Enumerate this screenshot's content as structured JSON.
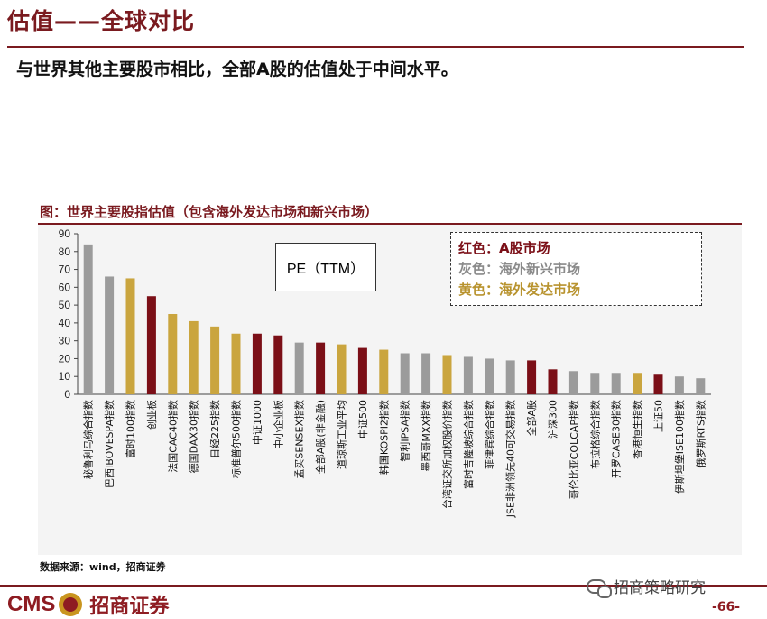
{
  "header": {
    "title": "估值——全球对比",
    "subtitle": "与世界其他主要股市相比，全部A股的估值处于中间水平。"
  },
  "figure": {
    "title": "图：世界主要股指估值（包含海外发达市场和新兴市场）",
    "source": "数据来源：wind，招商证券"
  },
  "chart_data": {
    "type": "bar",
    "title": "PE（TTM）",
    "ylim": [
      0,
      90
    ],
    "yticks": [
      0,
      10,
      20,
      30,
      40,
      50,
      60,
      70,
      80,
      90
    ],
    "categories": [
      "秘鲁利马综合指数",
      "巴西IBOVESPA指数",
      "富时100指数",
      "创业板",
      "法国CAC40指数",
      "德国DAX30指数",
      "日经225指数",
      "标准普尔500指数",
      "中证1000",
      "中小企业板",
      "孟买SENSEX指数",
      "全部A股(非金融)",
      "道琼斯工业平均",
      "中证500",
      "韩国KOSPI2指数",
      "智利IPSA指数",
      "墨西哥MXX指数",
      "台湾证交所加权股价指数",
      "富时吉隆坡综合指数",
      "菲律宾综合指数",
      "JSE非洲领先40可交易指数",
      "全部A股",
      "沪深300",
      "哥伦比亚COLCAP指数",
      "布拉格综合指数",
      "开罗CASE30指数",
      "香港恒生指数",
      "上证50",
      "伊斯坦堡ISE100指数",
      "俄罗斯RTS指数"
    ],
    "values": [
      84,
      66,
      65,
      55,
      45,
      41,
      38,
      34,
      34,
      33,
      29,
      29,
      28,
      26,
      25,
      23,
      23,
      22,
      21,
      20,
      19,
      19,
      14,
      13,
      12,
      12,
      12,
      11,
      10,
      9
    ],
    "groups": [
      "grey",
      "grey",
      "yellow",
      "red",
      "yellow",
      "yellow",
      "yellow",
      "yellow",
      "red",
      "red",
      "grey",
      "red",
      "yellow",
      "red",
      "yellow",
      "grey",
      "grey",
      "yellow",
      "grey",
      "grey",
      "grey",
      "red",
      "red",
      "grey",
      "grey",
      "grey",
      "yellow",
      "red",
      "grey",
      "grey"
    ],
    "colors": {
      "red": "#7b0f17",
      "grey": "#9b9b9b",
      "yellow": "#caa53e"
    },
    "legend": [
      {
        "label": "红色：A股市场",
        "color": "#7b0f17"
      },
      {
        "label": "灰色：海外新兴市场",
        "color": "#8a8a8a"
      },
      {
        "label": "黄色：海外发达市场",
        "color": "#b8932e"
      }
    ]
  },
  "footer": {
    "logo_text": "CMS",
    "logo_cn": "招商证券",
    "wechat": "招商策略研究",
    "page_number": "-66-"
  }
}
